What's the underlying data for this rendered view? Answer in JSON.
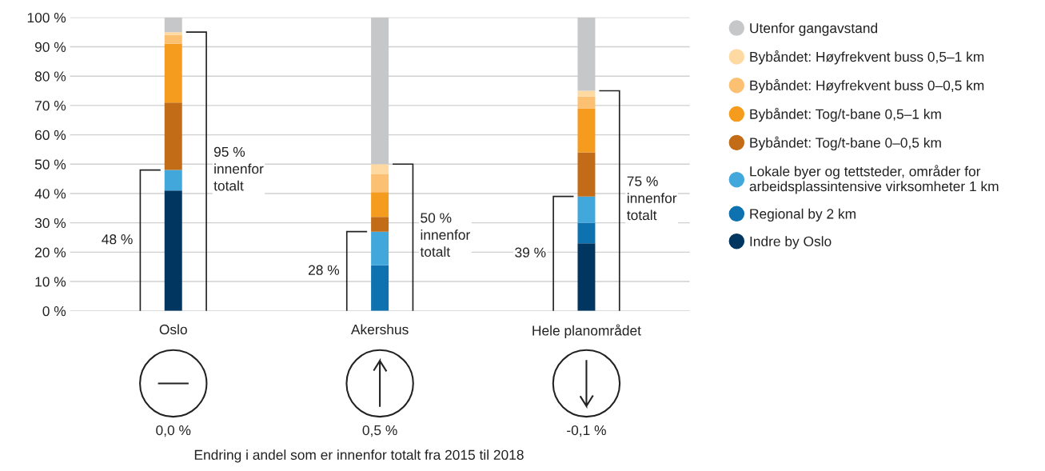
{
  "chart_data": {
    "type": "bar",
    "stacked": true,
    "categories": [
      "Oslo",
      "Akershus",
      "Hele planområdet"
    ],
    "series": [
      {
        "name": "Indre by Oslo",
        "color": "#003660",
        "values": [
          41,
          0,
          23
        ]
      },
      {
        "name": "Regional by 2 km",
        "color": "#0e72b0",
        "values": [
          0,
          15.5,
          7
        ]
      },
      {
        "name": "Lokale byer og tettsteder, områder for\narbeidsplassintensive virksomheter 1 km",
        "color": "#42a8dc",
        "values": [
          7,
          11.5,
          9
        ]
      },
      {
        "name": "Bybåndet: Tog/t-bane 0–0,5 km",
        "color": "#c26c17",
        "values": [
          23,
          5,
          15
        ]
      },
      {
        "name": "Bybåndet: Tog/t-bane 0,5–1 km",
        "color": "#f59c1e",
        "values": [
          20,
          8.5,
          15
        ]
      },
      {
        "name": "Bybåndet: Høyfrekvent buss 0–0,5 km",
        "color": "#fcc073",
        "values": [
          3,
          6,
          4
        ]
      },
      {
        "name": "Bybåndet: Høyfrekvent buss 0,5–1 km",
        "color": "#fedaa2",
        "values": [
          1,
          3.5,
          2
        ]
      },
      {
        "name": "Utenfor gangavstand",
        "color": "#c6c7c9",
        "values": [
          5,
          50,
          25
        ]
      }
    ],
    "ylim": [
      0,
      100
    ],
    "yticks": [
      {
        "value": 0,
        "label": "0 %"
      },
      {
        "value": 10,
        "label": "10 %"
      },
      {
        "value": 20,
        "label": "20 %"
      },
      {
        "value": 30,
        "label": "30 %"
      },
      {
        "value": 40,
        "label": "40 %"
      },
      {
        "value": 50,
        "label": "50 %"
      },
      {
        "value": 60,
        "label": "60 %"
      },
      {
        "value": 70,
        "label": "70 %"
      },
      {
        "value": 80,
        "label": "80 %"
      },
      {
        "value": 90,
        "label": "90 %"
      },
      {
        "value": 100,
        "label": "100 %"
      }
    ],
    "grid": "y",
    "legend": "right",
    "marker": "circle",
    "annotations": [
      "48 %",
      "95 %\ninnenfor\ntotalt",
      "28 %",
      "50 %\ninnenfor\ntotalt",
      "39 %",
      "75 %\ninnenfor\ntotalt",
      "0,0 %",
      "0,5 %",
      "-0,1 %",
      "Endring i andel som er innenfor totalt fra 2015 til 2018"
    ]
  }
}
